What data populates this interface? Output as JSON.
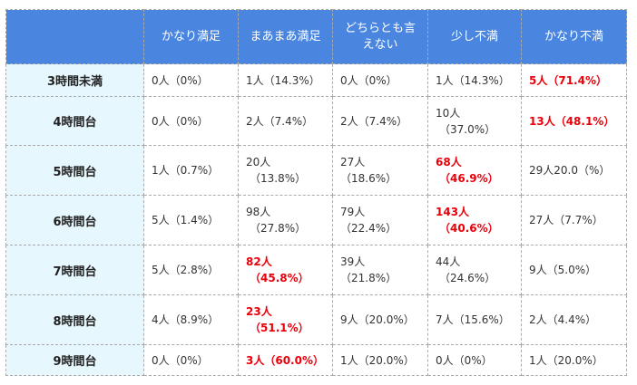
{
  "table": {
    "corner": "",
    "columns": [
      "かなり満足",
      "まあまあ満足",
      "どちらとも言えない",
      "少し不満",
      "かなり不満"
    ],
    "highlight_color": "#e8000b",
    "header_bg": "#4a86e0",
    "rowheader_bg": "#e6f7fd",
    "rows": [
      {
        "label": "3時間未満",
        "cells": [
          {
            "count": "0人",
            "pct": "（0%）",
            "hl": false,
            "wrap": false
          },
          {
            "count": "1人",
            "pct": "（14.3%）",
            "hl": false,
            "wrap": false
          },
          {
            "count": "0人",
            "pct": "（0%）",
            "hl": false,
            "wrap": false
          },
          {
            "count": "1人",
            "pct": "（14.3%）",
            "hl": false,
            "wrap": false
          },
          {
            "count": "5人",
            "pct": "（71.4%）",
            "hl": true,
            "wrap": false
          }
        ]
      },
      {
        "label": "4時間台",
        "cells": [
          {
            "count": "0人",
            "pct": "（0%）",
            "hl": false,
            "wrap": false
          },
          {
            "count": "2人",
            "pct": "（7.4%）",
            "hl": false,
            "wrap": false
          },
          {
            "count": "2人",
            "pct": "（7.4%）",
            "hl": false,
            "wrap": false
          },
          {
            "count": "10人",
            "pct": "（37.0%）",
            "hl": false,
            "wrap": true
          },
          {
            "count": "13人",
            "pct": "（48.1%）",
            "hl": true,
            "wrap": false
          }
        ]
      },
      {
        "label": "5時間台",
        "cells": [
          {
            "count": "1人",
            "pct": "（0.7%）",
            "hl": false,
            "wrap": false
          },
          {
            "count": "20人",
            "pct": "（13.8%）",
            "hl": false,
            "wrap": true
          },
          {
            "count": "27人",
            "pct": "（18.6%）",
            "hl": false,
            "wrap": false
          },
          {
            "count": "68人",
            "pct": "（46.9%）",
            "hl": true,
            "wrap": true
          },
          {
            "count": "29人20.0",
            "pct": "（%）",
            "hl": false,
            "wrap": false
          }
        ]
      },
      {
        "label": "6時間台",
        "cells": [
          {
            "count": "5人",
            "pct": "（1.4%）",
            "hl": false,
            "wrap": false
          },
          {
            "count": "98人",
            "pct": "（27.8%）",
            "hl": false,
            "wrap": true
          },
          {
            "count": "79人",
            "pct": "（22.4%）",
            "hl": false,
            "wrap": false
          },
          {
            "count": "143人",
            "pct": "（40.6%）",
            "hl": true,
            "wrap": true
          },
          {
            "count": "27人",
            "pct": "（7.7%）",
            "hl": false,
            "wrap": false
          }
        ]
      },
      {
        "label": "7時間台",
        "cells": [
          {
            "count": "5人",
            "pct": "（2.8%）",
            "hl": false,
            "wrap": false
          },
          {
            "count": "82人",
            "pct": "（45.8%）",
            "hl": true,
            "wrap": true
          },
          {
            "count": "39人",
            "pct": "（21.8%）",
            "hl": false,
            "wrap": false
          },
          {
            "count": "44人",
            "pct": "（24.6%）",
            "hl": false,
            "wrap": true
          },
          {
            "count": "9人",
            "pct": "（5.0%）",
            "hl": false,
            "wrap": false
          }
        ]
      },
      {
        "label": "8時間台",
        "cells": [
          {
            "count": "4人",
            "pct": "（8.9%）",
            "hl": false,
            "wrap": false
          },
          {
            "count": "23人",
            "pct": "（51.1%）",
            "hl": true,
            "wrap": true
          },
          {
            "count": "9人",
            "pct": "（20.0%）",
            "hl": false,
            "wrap": false
          },
          {
            "count": "7人",
            "pct": "（15.6%）",
            "hl": false,
            "wrap": false
          },
          {
            "count": "2人",
            "pct": "（4.4%）",
            "hl": false,
            "wrap": false
          }
        ]
      },
      {
        "label": "9時間台",
        "cells": [
          {
            "count": "0人",
            "pct": "（0%）",
            "hl": false,
            "wrap": false
          },
          {
            "count": "3人",
            "pct": "（60.0%）",
            "hl": true,
            "wrap": false
          },
          {
            "count": "1人",
            "pct": "（20.0%）",
            "hl": false,
            "wrap": false
          },
          {
            "count": "0人",
            "pct": "（0%）",
            "hl": false,
            "wrap": false
          },
          {
            "count": "1人",
            "pct": "（20.0%）",
            "hl": false,
            "wrap": false
          }
        ]
      }
    ]
  }
}
